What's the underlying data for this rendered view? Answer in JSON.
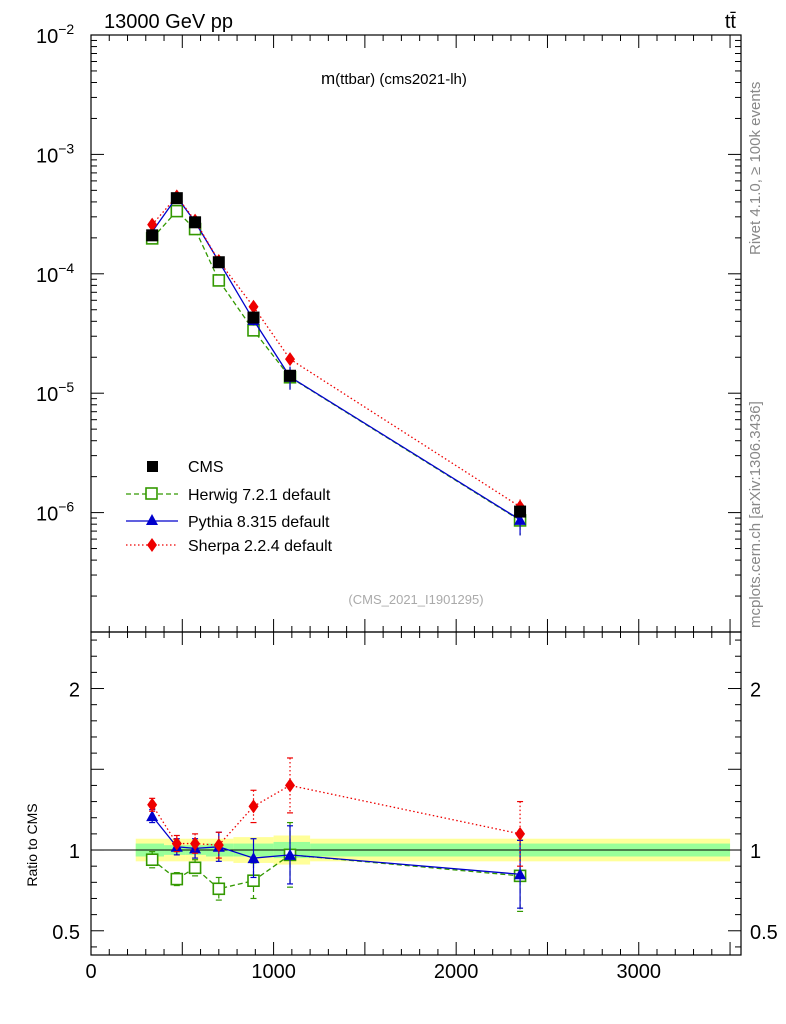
{
  "header": {
    "energy_label": "13000 GeV pp",
    "process_label": "tt̄",
    "right_label_top": "Rivet 4.1.0, ≥ 100k events",
    "right_label_bottom": "mcplots.cern.ch [arXiv:1306.3436]"
  },
  "colors": {
    "data": "#000000",
    "herwig": "#339900",
    "pythia": "#0000cc",
    "sherpa": "#ee0000",
    "band_outer": "#ffff99",
    "band_inner": "#99ff99"
  },
  "chart_data": [
    {
      "type": "line",
      "title": "m(ttbar) (cms2021-lh)",
      "title_main": "m",
      "title_sub": "(ttbar) (cms2021-lh)",
      "analysis_id": "(CMS_2021_I1901295)",
      "yscale": "log",
      "ylim": [
        1e-07,
        0.01
      ],
      "xlim": [
        0,
        3560
      ],
      "y_ticks": [
        {
          "value": 0.01,
          "base": "10",
          "exp": "−2"
        },
        {
          "value": 0.001,
          "base": "10",
          "exp": "−3"
        },
        {
          "value": 0.0001,
          "base": "10",
          "exp": "−4"
        },
        {
          "value": 1e-05,
          "base": "10",
          "exp": "−5"
        },
        {
          "value": 1e-06,
          "base": "10",
          "exp": "−6"
        }
      ],
      "legend_position": "lower-left",
      "series": [
        {
          "name": "CMS",
          "kind": "data",
          "x": [
            335,
            470,
            570,
            700,
            890,
            1090,
            2350
          ],
          "y": [
            0.00021,
            0.00043,
            0.00027,
            0.000125,
            4.3e-05,
            1.4e-05,
            1.02e-06
          ],
          "err_rel": [
            0.04,
            0.03,
            0.04,
            0.04,
            0.06,
            0.08,
            0.1
          ]
        },
        {
          "name": "Herwig 7.2.1 default",
          "kind": "herwig",
          "x": [
            335,
            470,
            570,
            700,
            890,
            1090,
            2350
          ],
          "y": [
            0.000198,
            0.000335,
            0.000237,
            8.8e-05,
            3.36e-05,
            1.36e-05,
            8.6e-07
          ],
          "err_rel": [
            0.06,
            0.04,
            0.05,
            0.07,
            0.1,
            0.2,
            0.25
          ]
        },
        {
          "name": "Pythia 8.315 default",
          "kind": "pythia",
          "x": [
            335,
            470,
            570,
            700,
            890,
            1090,
            2350
          ],
          "y": [
            0.000225,
            0.00044,
            0.000272,
            0.000127,
            4.1e-05,
            1.37e-05,
            8.7e-07
          ],
          "err_rel": [
            0.04,
            0.04,
            0.05,
            0.07,
            0.1,
            0.22,
            0.26
          ]
        },
        {
          "name": "Sherpa 2.2.4 default",
          "kind": "sherpa",
          "x": [
            335,
            470,
            570,
            700,
            890,
            1090,
            2350
          ],
          "y": [
            0.000258,
            0.000445,
            0.000279,
            0.000128,
            5.3e-05,
            1.93e-05,
            1.12e-06
          ],
          "err_rel": [
            0.04,
            0.05,
            0.05,
            0.08,
            0.1,
            0.1,
            0.15
          ]
        }
      ]
    },
    {
      "type": "line",
      "ylabel": "Ratio to CMS",
      "xlabel": "",
      "ylim": [
        0.35,
        2.35
      ],
      "xlim": [
        0,
        3560
      ],
      "y_ticks": [
        "0.5",
        "1",
        "2"
      ],
      "x_ticks": [
        "0",
        "1000",
        "2000",
        "3000"
      ],
      "band_bins": [
        {
          "lo": 245,
          "hi": 400,
          "outer": 0.07,
          "inner": 0.04
        },
        {
          "lo": 400,
          "hi": 520,
          "outer": 0.07,
          "inner": 0.03
        },
        {
          "lo": 520,
          "hi": 630,
          "outer": 0.07,
          "inner": 0.03
        },
        {
          "lo": 630,
          "hi": 780,
          "outer": 0.07,
          "inner": 0.04
        },
        {
          "lo": 780,
          "hi": 1000,
          "outer": 0.08,
          "inner": 0.04
        },
        {
          "lo": 1000,
          "hi": 1200,
          "outer": 0.09,
          "inner": 0.05
        },
        {
          "lo": 1200,
          "hi": 3500,
          "outer": 0.07,
          "inner": 0.04
        }
      ],
      "series": [
        {
          "name": "Herwig 7.2.1 default",
          "kind": "herwig",
          "x": [
            335,
            470,
            570,
            700,
            890,
            1090,
            2350
          ],
          "y": [
            0.94,
            0.82,
            0.89,
            0.76,
            0.81,
            0.97,
            0.84
          ],
          "err": [
            0.05,
            0.04,
            0.05,
            0.07,
            0.11,
            0.2,
            0.22
          ]
        },
        {
          "name": "Pythia 8.315 default",
          "kind": "pythia",
          "x": [
            335,
            470,
            570,
            700,
            890,
            1090,
            2350
          ],
          "y": [
            1.21,
            1.02,
            1.01,
            1.02,
            0.95,
            0.97,
            0.85
          ],
          "err": [
            0.04,
            0.05,
            0.06,
            0.09,
            0.12,
            0.18,
            0.21
          ]
        },
        {
          "name": "Sherpa 2.2.4 default",
          "kind": "sherpa",
          "x": [
            335,
            470,
            570,
            700,
            890,
            1090,
            2350
          ],
          "y": [
            1.28,
            1.04,
            1.04,
            1.03,
            1.27,
            1.4,
            1.1
          ],
          "err": [
            0.04,
            0.05,
            0.06,
            0.08,
            0.1,
            0.17,
            0.2
          ]
        }
      ]
    }
  ]
}
